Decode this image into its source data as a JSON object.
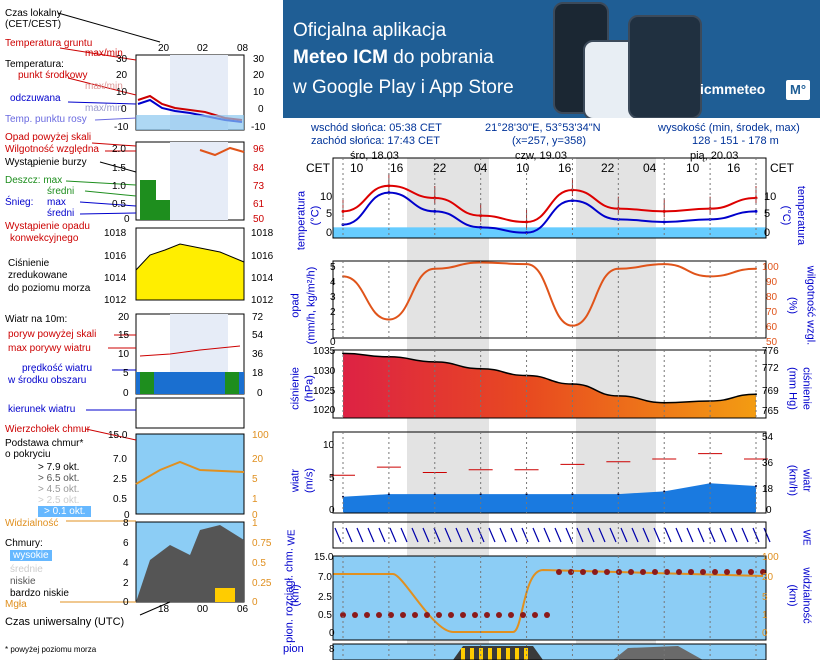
{
  "legend": {
    "local_time": "Czas lokalny",
    "local_time_tz": "(CET/CEST)",
    "top_ticks": [
      "20",
      "02",
      "08"
    ],
    "soil_temp": "Temperatura gruntu",
    "soil_temp_range": "max/min",
    "temperature": "Temperatura:",
    "temp_mid": "punkt środkowy",
    "temp_mid_range": "max/min",
    "temp_feel": "odczuwana",
    "temp_feel_range": "max/min",
    "dew_point": "Temp. punktu rosy",
    "temp_ticks": [
      "30",
      "20",
      "10",
      "0",
      "-10"
    ],
    "precip_above": "Opad powyżej skali",
    "humidity": "Wilgotność względna",
    "storm": "Wystąpienie burzy",
    "rain": "Deszcz: max",
    "rain_avg": "średni",
    "snow": "Śnieg:",
    "snow_max": "max",
    "snow_avg": "średni",
    "conv_precip": "Wystąpienie opadu",
    "conv_precip2": "konwekcyjnego",
    "precip_ticks": [
      "2.0",
      "1.5",
      "1.0",
      "0.5",
      "0"
    ],
    "hum_ticks": [
      "96",
      "84",
      "73",
      "61",
      "50"
    ],
    "pressure_ticks": [
      "1018",
      "1016",
      "1014",
      "1012"
    ],
    "pressure1": "Ciśnienie",
    "pressure2": "zredukowane",
    "pressure3": "do poziomu morza",
    "wind_title": "Wiatr na 10m:",
    "gust_above": "poryw powyżej skali",
    "max_gust": "max porywy wiatru",
    "wind_speed": "prędkość wiatru",
    "wind_speed2": "w środku obszaru",
    "wind_ticks": [
      "20",
      "15",
      "10",
      "5",
      "0"
    ],
    "wind_kmh_ticks": [
      "72",
      "54",
      "36",
      "18",
      "0"
    ],
    "wind_dir": "kierunek wiatru",
    "cloud_top": "Wierzchołek chmur",
    "cloud_base": "Podstawa chmur*",
    "cloud_base2": "o pokryciu",
    "okt": [
      "> 7.9 okt.",
      "> 6.5 okt.",
      "> 4.5 okt.",
      "> 2.5 okt.",
      "> 0.1 okt."
    ],
    "base_ticks": [
      "15.0",
      "7.0",
      "2.5",
      "0.5",
      "0"
    ],
    "vis_ticks": [
      "100",
      "20",
      "5",
      "1",
      "0"
    ],
    "visibility": "Widzialność",
    "clouds": "Chmury:",
    "cl_high": "wysokie",
    "cl_mid": "średnie",
    "cl_low": "niskie",
    "cl_vlow": "bardzo niskie",
    "fog": "Mgła",
    "cl_ticks": [
      "8",
      "6",
      "4",
      "2",
      "0"
    ],
    "cl_rticks": [
      "1",
      "0.75",
      "0.5",
      "0.25",
      "0"
    ],
    "utc": "Czas uniwersalny (UTC)",
    "bottom_ticks": [
      "18",
      "00",
      "06"
    ],
    "footnote": "* powyżej poziomu morza"
  },
  "banner": {
    "line1": "Oficjalna aplikacja",
    "line2a": "Meteo ICM",
    "line2b": " do pobrania",
    "line3": "w Google Play i App Store",
    "logo": "icmmeteo",
    "logo_mark": "M°"
  },
  "info": {
    "sunrise": "wschód słońca: 05:38 CET",
    "sunset": "zachód słońca: 17:43 CET",
    "coords": "21°28'30\"E, 53°53'34\"N",
    "grid": "(x=257,  y=358)",
    "elev_label": "wysokość (min, środek, max)",
    "elev": "128 - 151 - 178 m"
  },
  "main": {
    "cet": "CET",
    "days": [
      "śro, 18.03",
      "czw, 19.03",
      "pią, 20.03"
    ],
    "hours": [
      "10",
      "16",
      "22",
      "04",
      "10",
      "16",
      "22",
      "04",
      "10",
      "16"
    ],
    "temp_label": "temperatura",
    "temp_unit": "(°C)",
    "precip_label": "opad",
    "precip_unit": "(mm/h, kg/m²/h)",
    "hum_label": "wilgotność wzgl.",
    "hum_unit": "(%)",
    "pres_label": "ciśnienie",
    "pres_unit": "(hPa)",
    "pres_unit2": "(mm Hg)",
    "wind_label": "wiatr",
    "wind_unit": "(m/s)",
    "wind_unit2": "(km/h)",
    "cloud_label": "pion. rozciągł. chm.",
    "cloud_unit": "(km)",
    "vis_label": "widzialność",
    "vis_unit": "(km)",
    "compass": "WE",
    "temp_left_ticks": [
      "10",
      "5",
      "0"
    ],
    "temp_right_ticks": [
      "10",
      "5",
      "0"
    ],
    "precip_ticks": [
      "5",
      "4",
      "3",
      "2",
      "1",
      "0"
    ],
    "hum_ticks": [
      "100",
      "90",
      "80",
      "70",
      "60",
      "50"
    ],
    "pres_ticks": [
      "1035",
      "1030",
      "1025",
      "1020"
    ],
    "pres_mm_ticks": [
      "776",
      "772",
      "769",
      "765"
    ],
    "wind_ticks": [
      "10",
      "5",
      "0"
    ],
    "wind_kmh_ticks": [
      "54",
      "36",
      "18",
      "0"
    ],
    "cloud_ticks": [
      "15.0",
      "7.0",
      "2.5",
      "0.5",
      "0"
    ],
    "vis_ticks": [
      "100",
      "20",
      "5",
      "1",
      "0"
    ],
    "bottom_label": "pion",
    "bottom_tick": "8"
  },
  "colors": {
    "temp": "#dd0000",
    "feel": "#0000cc",
    "dew": "#6a6ae0",
    "humidity": "#e0541a",
    "pressure_fill": "#dd2244",
    "wind_fill": "#1a7ae0",
    "visibility": "#e09020",
    "band": "#66ccff"
  },
  "chart_data": [
    {
      "type": "line",
      "title": "temperatura",
      "x": [
        "10",
        "16",
        "22",
        "04",
        "10",
        "16",
        "22",
        "04",
        "10",
        "16"
      ],
      "ylabel": "(°C)",
      "ylim": [
        -2,
        13
      ],
      "series": [
        {
          "name": "temperatura",
          "values": [
            3,
            7.8,
            5.5,
            2.2,
            1,
            7,
            3.5,
            3,
            3.5,
            5.5
          ]
        },
        {
          "name": "odczuwana",
          "values": [
            0.5,
            6.5,
            3,
            0,
            -1,
            5,
            1.5,
            1,
            1.5,
            3
          ]
        }
      ]
    },
    {
      "type": "line",
      "title": "wilgotność wzgl.",
      "x": [
        "10",
        "16",
        "22",
        "04",
        "10",
        "16",
        "22",
        "04",
        "10",
        "16"
      ],
      "ylabel": "(%)",
      "ylim": [
        50,
        100
      ],
      "series": [
        {
          "name": "wilgotność wzgl.",
          "values": [
            90,
            62,
            95,
            99,
            98,
            58,
            95,
            98,
            90,
            95
          ]
        }
      ]
    },
    {
      "type": "area",
      "title": "ciśnienie",
      "x": [
        "10",
        "16",
        "22",
        "04",
        "10",
        "16",
        "22",
        "04",
        "10",
        "16"
      ],
      "ylabel": "(hPa)",
      "ylim": [
        1015,
        1035
      ],
      "series": [
        {
          "name": "ciśnienie",
          "values": [
            1034,
            1033,
            1031.5,
            1029.5,
            1027.5,
            1025,
            1021.5,
            1019.5,
            1020,
            1022
          ]
        }
      ]
    },
    {
      "type": "area",
      "title": "wiatr",
      "x": [
        "10",
        "16",
        "22",
        "04",
        "10",
        "16",
        "22",
        "04",
        "10",
        "16"
      ],
      "ylabel": "(m/s)",
      "ylim": [
        0,
        15
      ],
      "series": [
        {
          "name": "wiatr",
          "values": [
            3,
            3.5,
            3.5,
            3.5,
            3.5,
            3.5,
            3.5,
            4,
            5.5,
            5
          ]
        },
        {
          "name": "max porywy",
          "values": [
            7,
            8.5,
            7.5,
            8,
            8,
            9,
            9.5,
            10,
            11,
            10
          ]
        }
      ]
    }
  ]
}
